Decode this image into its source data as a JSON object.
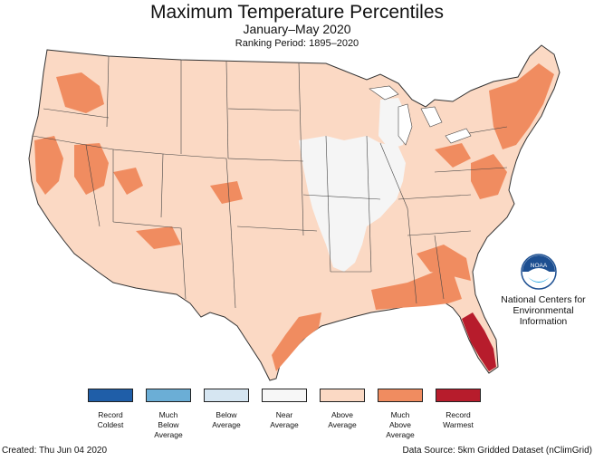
{
  "title": "Maximum Temperature Percentiles",
  "subtitle": "January–May 2020",
  "ranking_period": "Ranking Period: 1895–2020",
  "logo": {
    "icon": "noaa-logo-icon",
    "text": "NOAA"
  },
  "organization": "National Centers for\nEnvironmental\nInformation",
  "legend": [
    {
      "label": "Record\nColdest",
      "color": "#1f5ea8"
    },
    {
      "label": "Much\nBelow\nAverage",
      "color": "#6baed6"
    },
    {
      "label": "Below\nAverage",
      "color": "#d6e6f2"
    },
    {
      "label": "Near\nAverage",
      "color": "#f7f7f7"
    },
    {
      "label": "Above\nAverage",
      "color": "#fbd9c4"
    },
    {
      "label": "Much\nAbove\nAverage",
      "color": "#f08c60"
    },
    {
      "label": "Record\nWarmest",
      "color": "#b71c2c"
    }
  ],
  "footer": {
    "created": "Created: Thu Jun 04 2020",
    "source": "Data Source: 5km Gridded Dataset (nClimGrid)"
  }
}
